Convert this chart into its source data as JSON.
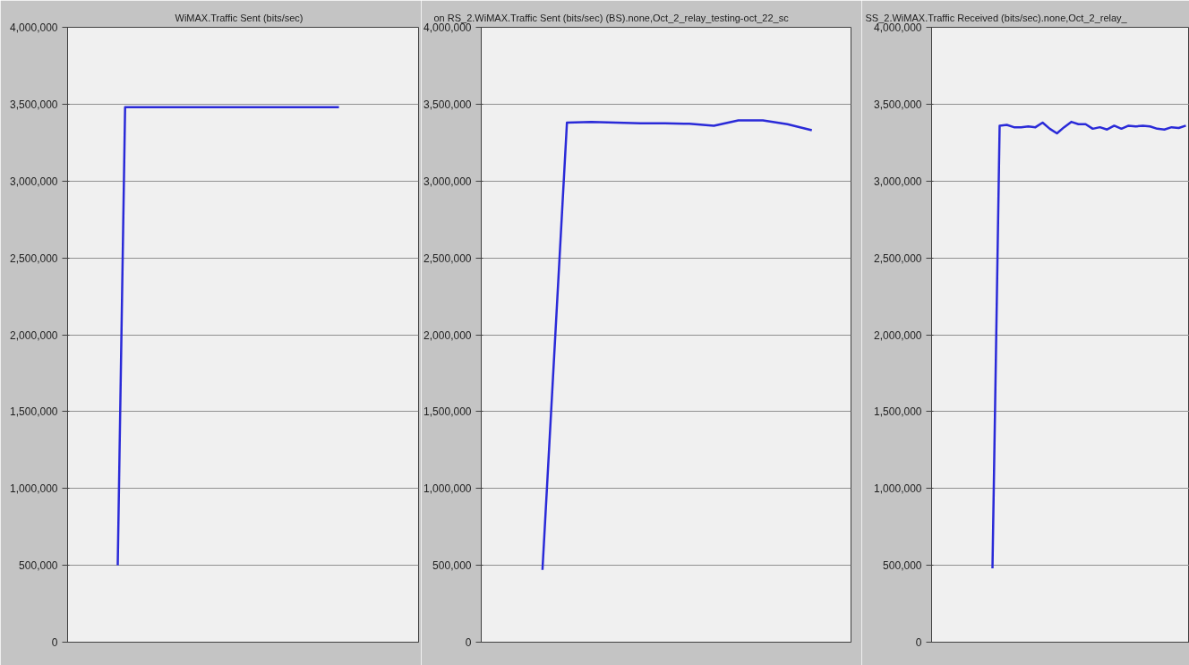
{
  "chart_data": [
    {
      "type": "line",
      "title": "WiMAX.Traffic Sent (bits/sec)",
      "categories": [
        null,
        null,
        null,
        null,
        null,
        null,
        null,
        null,
        null,
        null,
        null,
        null,
        null,
        null,
        null,
        null,
        null,
        null,
        null,
        null,
        null,
        null,
        null,
        null,
        null,
        null,
        null,
        null,
        null,
        null,
        null
      ],
      "values": [
        500000,
        3480000,
        3480000,
        3480000,
        3480000,
        3480000,
        3480000,
        3480000,
        3480000,
        3480000,
        3480000,
        3480000,
        3480000,
        3480000,
        3480000,
        3480000,
        3480000,
        3480000,
        3480000,
        3480000,
        3480000,
        3480000,
        3480000,
        3480000,
        3480000,
        3480000,
        3480000,
        3480000,
        3480000,
        3480000,
        3480000
      ],
      "color": "#2a2ad8",
      "ylim": [
        0,
        4000000
      ],
      "yticks": [
        {
          "value": 0,
          "label": "0"
        },
        {
          "value": 500000,
          "label": "500,000"
        },
        {
          "value": 1000000,
          "label": "1,000,000"
        },
        {
          "value": 1500000,
          "label": "1,500,000"
        },
        {
          "value": 2000000,
          "label": "2,000,000"
        },
        {
          "value": 2500000,
          "label": "2,500,000"
        },
        {
          "value": 3000000,
          "label": "3,000,000"
        },
        {
          "value": 3500000,
          "label": "3,500,000"
        },
        {
          "value": 4000000,
          "label": "4,000,000"
        }
      ],
      "grid": "y",
      "tick_labels": "y"
    },
    {
      "type": "line",
      "title": "on RS_2.WiMAX.Traffic Sent (bits/sec) (BS).none,Oct_2_relay_testing-oct_22_sc",
      "categories": [
        null,
        null,
        null,
        null,
        null,
        null,
        null,
        null,
        null,
        null,
        null,
        null
      ],
      "values": [
        470000,
        3380000,
        3385000,
        3380000,
        3375000,
        3375000,
        3372000,
        3360000,
        3395000,
        3395000,
        3370000,
        3330000
      ],
      "color": "#2a2ad8",
      "ylim": [
        0,
        4000000
      ],
      "yticks": [
        {
          "value": 0,
          "label": "0"
        },
        {
          "value": 500000,
          "label": "500,000"
        },
        {
          "value": 1000000,
          "label": "1,000,000"
        },
        {
          "value": 1500000,
          "label": "1,500,000"
        },
        {
          "value": 2000000,
          "label": "2,000,000"
        },
        {
          "value": 2500000,
          "label": "2,500,000"
        },
        {
          "value": 3000000,
          "label": "3,000,000"
        },
        {
          "value": 3500000,
          "label": "3,500,000"
        },
        {
          "value": 4000000,
          "label": "4,000,000"
        }
      ],
      "grid": "y",
      "tick_labels": "y"
    },
    {
      "type": "line",
      "title": "SS_2.WiMAX.Traffic Received (bits/sec).none,Oct_2_relay_",
      "categories": [
        null,
        null,
        null,
        null,
        null,
        null,
        null,
        null,
        null,
        null,
        null,
        null,
        null,
        null,
        null,
        null,
        null,
        null,
        null,
        null,
        null,
        null,
        null,
        null,
        null,
        null,
        null,
        null
      ],
      "values": [
        480000,
        3360000,
        3365000,
        3350000,
        3350000,
        3355000,
        3350000,
        3380000,
        3340000,
        3310000,
        3350000,
        3385000,
        3370000,
        3370000,
        3340000,
        3350000,
        3335000,
        3360000,
        3340000,
        3360000,
        3355000,
        3360000,
        3355000,
        3340000,
        3335000,
        3350000,
        3345000,
        3360000
      ],
      "color": "#2a2ad8",
      "ylim": [
        0,
        4000000
      ],
      "yticks": [
        {
          "value": 0,
          "label": "0"
        },
        {
          "value": 500000,
          "label": "500,000"
        },
        {
          "value": 1000000,
          "label": "1,000,000"
        },
        {
          "value": 1500000,
          "label": "1,500,000"
        },
        {
          "value": 2000000,
          "label": "2,000,000"
        },
        {
          "value": 2500000,
          "label": "2,500,000"
        },
        {
          "value": 3000000,
          "label": "3,000,000"
        },
        {
          "value": 3500000,
          "label": "3,500,000"
        },
        {
          "value": 4000000,
          "label": "4,000,000"
        }
      ],
      "grid": "y",
      "tick_labels": "y"
    }
  ]
}
